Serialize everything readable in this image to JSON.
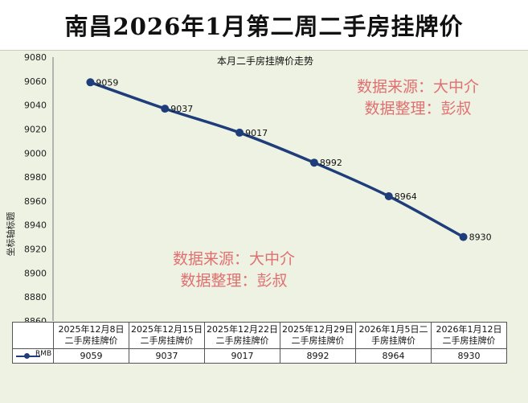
{
  "banner": {
    "title": "南昌2026年1月第二周二手房挂牌价"
  },
  "watermarks": {
    "line1": "数据来源：大中介",
    "line2": "数据整理：彭叔"
  },
  "chart_data": {
    "type": "line",
    "title": "本月二手房挂牌价走势",
    "ylabel": "坐标轴标题",
    "xlabel": "",
    "ylim": [
      8860,
      9080
    ],
    "yticks": [
      8860,
      8880,
      8900,
      8920,
      8940,
      8960,
      8980,
      9000,
      9020,
      9040,
      9060,
      9080
    ],
    "grid": false,
    "categories": [
      "2025年12月8日二手房挂牌价",
      "2025年12月15日二手房挂牌价",
      "2025年12月22日二手房挂牌价",
      "2025年12月29日二手房挂牌价",
      "2026年1月5日二手房挂牌价",
      "2026年1月12日二手房挂牌价"
    ],
    "category_lines": [
      [
        "2025年12月8日",
        "二手房挂牌价"
      ],
      [
        "2025年12月15日",
        "二手房挂牌价"
      ],
      [
        "2025年12月22日",
        "二手房挂牌价"
      ],
      [
        "2025年12月29日",
        "二手房挂牌价"
      ],
      [
        "2026年1月5日二",
        "手房挂牌价"
      ],
      [
        "2026年1月12日",
        "二手房挂牌价"
      ]
    ],
    "series": [
      {
        "name": "RMB",
        "values": [
          9059,
          9037,
          9017,
          8992,
          8964,
          8930
        ],
        "color": "#1f3d7a"
      }
    ],
    "legend_placement": "data-table"
  }
}
